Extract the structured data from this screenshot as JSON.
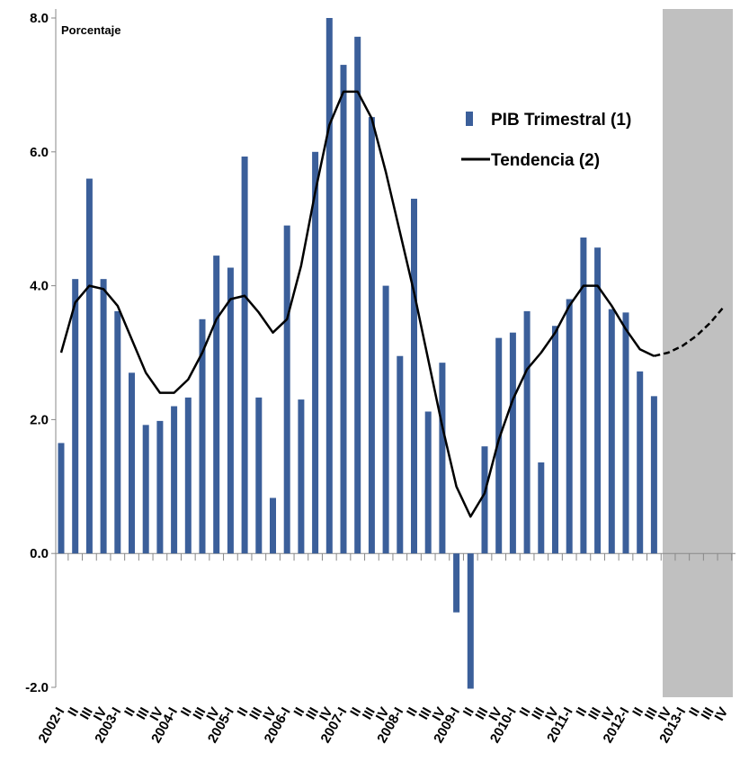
{
  "chart_data": {
    "type": "bar",
    "ylabel": "Porcentaje",
    "categories": [
      "2002-I",
      "II",
      "III",
      "IV",
      "2003-I",
      "II",
      "III",
      "IV",
      "2004-I",
      "II",
      "III",
      "IV",
      "2005-I",
      "II",
      "III",
      "IV",
      "2006-I",
      "II",
      "III",
      "IV",
      "2007-I",
      "II",
      "III",
      "IV",
      "2008-I",
      "II",
      "III",
      "IV",
      "2009-I",
      "II",
      "III",
      "IV",
      "2010-I",
      "II",
      "III",
      "IV",
      "2011-I",
      "II",
      "III",
      "IV",
      "2012-I",
      "II",
      "III",
      "IV",
      "2013-I",
      "II",
      "III",
      "IV"
    ],
    "series": [
      {
        "name": "PIB Trimestral (1)",
        "type": "bar",
        "color": "#3b5f9a",
        "values": [
          1.65,
          4.1,
          5.6,
          4.1,
          3.62,
          2.7,
          1.92,
          1.98,
          2.2,
          2.33,
          3.5,
          4.45,
          4.27,
          5.93,
          2.33,
          0.83,
          4.9,
          2.3,
          6.0,
          8.0,
          7.3,
          7.72,
          6.52,
          4.0,
          2.95,
          5.3,
          2.12,
          2.85,
          -0.88,
          -2.02,
          1.6,
          3.22,
          3.3,
          3.62,
          1.36,
          3.4,
          3.8,
          4.72,
          4.57,
          3.65,
          3.6,
          2.72,
          2.35,
          null,
          null,
          null,
          null,
          null
        ]
      },
      {
        "name": "Tendencia (2)",
        "type": "line",
        "color": "#000000",
        "values": [
          3.0,
          3.75,
          4.0,
          3.95,
          3.7,
          3.2,
          2.7,
          2.4,
          2.4,
          2.6,
          3.0,
          3.5,
          3.8,
          3.85,
          3.6,
          3.3,
          3.5,
          4.3,
          5.4,
          6.4,
          6.9,
          6.9,
          6.5,
          5.7,
          4.8,
          3.9,
          2.9,
          1.9,
          1.0,
          0.55,
          0.9,
          1.7,
          2.3,
          2.75,
          3.0,
          3.3,
          3.7,
          4.0,
          4.0,
          3.7,
          3.35,
          3.05,
          2.95,
          null,
          null,
          null,
          null,
          null
        ],
        "projection": [
          null,
          null,
          null,
          null,
          null,
          null,
          null,
          null,
          null,
          null,
          null,
          null,
          null,
          null,
          null,
          null,
          null,
          null,
          null,
          null,
          null,
          null,
          null,
          null,
          null,
          null,
          null,
          null,
          null,
          null,
          null,
          null,
          null,
          null,
          null,
          null,
          null,
          null,
          null,
          null,
          null,
          null,
          2.95,
          3.0,
          3.1,
          3.25,
          3.45,
          3.7
        ]
      }
    ],
    "ylim": [
      -2.0,
      8.0
    ],
    "yticks": [
      {
        "value": -2,
        "label": "-2.0"
      },
      {
        "value": 0,
        "label": "0.0"
      },
      {
        "value": 2,
        "label": "2.0"
      },
      {
        "value": 4,
        "label": "4.0"
      },
      {
        "value": 6,
        "label": "6.0"
      },
      {
        "value": 8,
        "label": "8.0"
      }
    ]
  }
}
